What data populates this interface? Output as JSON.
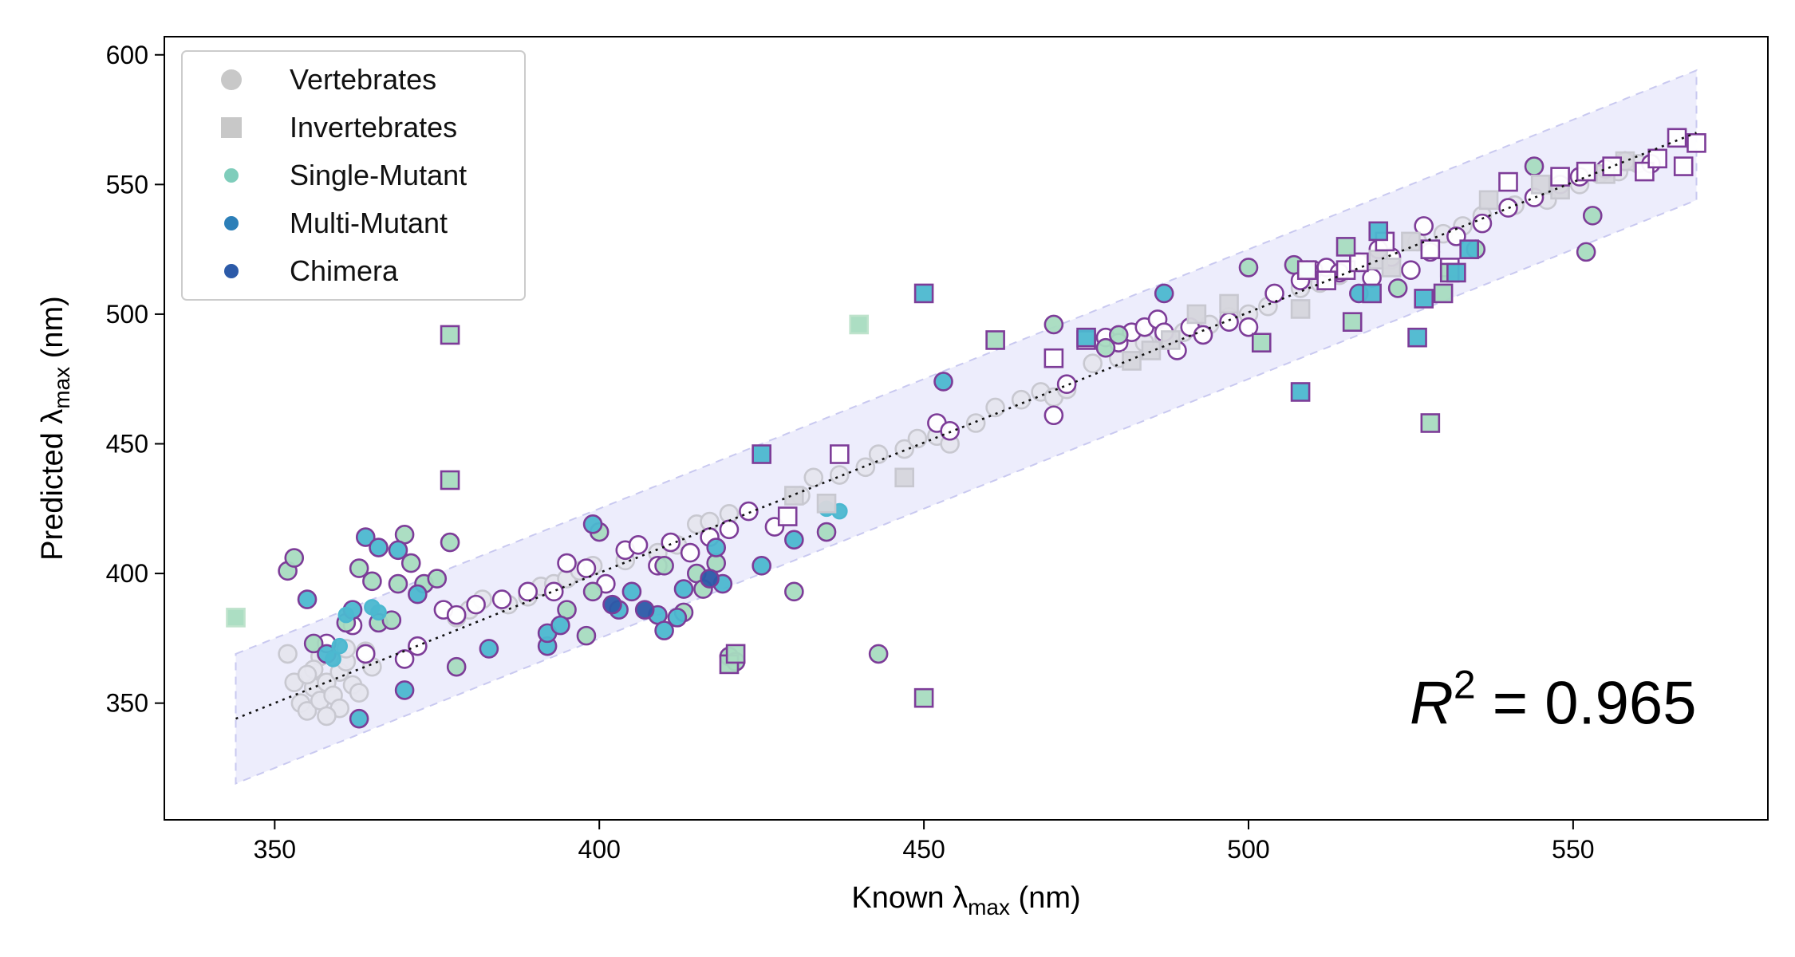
{
  "chart_data": {
    "type": "scatter",
    "xlabel_prefix": "Known λ",
    "xlabel_sub": "max",
    "xlabel_suffix": " (nm)",
    "ylabel_prefix": "Predicted λ",
    "ylabel_sub": "max",
    "ylabel_suffix": " (nm)",
    "xlim": [
      333,
      580
    ],
    "ylim": [
      305,
      607
    ],
    "xticks": [
      350,
      400,
      450,
      500,
      550
    ],
    "yticks": [
      350,
      400,
      450,
      500,
      550,
      600
    ],
    "grid": false,
    "annotation": {
      "r_label": "R",
      "r_exp": "2",
      "r_value": " = 0.965"
    },
    "fit_line": {
      "x": [
        344,
        569
      ],
      "y": [
        344,
        570
      ],
      "style": "dotted",
      "color": "#111111"
    },
    "band": {
      "x": [
        344,
        569
      ],
      "lower": [
        319,
        544
      ],
      "upper": [
        369,
        594
      ],
      "color": "#e9e9fb"
    },
    "colors": {
      "gray": "#c8c8c8",
      "gray_edge": "#c8c8d0",
      "purple": "#7d3c98",
      "single_mutant": "#7fcdbb",
      "mint": "#a8dcc0",
      "multi_mutant": "#2c7fb8",
      "cyan_fill": "#4cb8d0",
      "chimera": "#2c5aa8"
    },
    "legend": {
      "position": "top-left",
      "entries": [
        {
          "label": "Vertebrates",
          "marker": "circle",
          "color": "#c8c8c8"
        },
        {
          "label": "Invertebrates",
          "marker": "square",
          "color": "#c8c8c8"
        },
        {
          "label": "Single-Mutant",
          "marker": "small-circle",
          "color": "#7fcdbb"
        },
        {
          "label": "Multi-Mutant",
          "marker": "small-circle",
          "color": "#2c7fb8"
        },
        {
          "label": "Chimera",
          "marker": "small-circle",
          "color": "#2c5aa8"
        }
      ]
    },
    "series": [
      {
        "group": "vertebrates-wildtype",
        "marker": "circle",
        "fill": "#e6e6ee",
        "stroke": "#c8c8d0",
        "points": [
          [
            354,
            350
          ],
          [
            355,
            347
          ],
          [
            356,
            356
          ],
          [
            357,
            351
          ],
          [
            358,
            358
          ],
          [
            359,
            353
          ],
          [
            360,
            362
          ],
          [
            361,
            366
          ],
          [
            362,
            357
          ],
          [
            363,
            354
          ],
          [
            364,
            370
          ],
          [
            357,
            368
          ],
          [
            352,
            369
          ],
          [
            353,
            358
          ],
          [
            356,
            363
          ],
          [
            360,
            348
          ],
          [
            358,
            345
          ],
          [
            365,
            364
          ],
          [
            355,
            361
          ],
          [
            361,
            371
          ],
          [
            378,
            383
          ],
          [
            380,
            386
          ],
          [
            382,
            390
          ],
          [
            386,
            388
          ],
          [
            389,
            391
          ],
          [
            391,
            395
          ],
          [
            393,
            396
          ],
          [
            395,
            398
          ],
          [
            397,
            401
          ],
          [
            399,
            403
          ],
          [
            404,
            405
          ],
          [
            409,
            408
          ],
          [
            412,
            411
          ],
          [
            415,
            419
          ],
          [
            417,
            420
          ],
          [
            420,
            423
          ],
          [
            431,
            430
          ],
          [
            433,
            437
          ],
          [
            437,
            438
          ],
          [
            441,
            441
          ],
          [
            443,
            446
          ],
          [
            447,
            448
          ],
          [
            449,
            452
          ],
          [
            452,
            453
          ],
          [
            454,
            450
          ],
          [
            458,
            458
          ],
          [
            461,
            464
          ],
          [
            465,
            467
          ],
          [
            468,
            470
          ],
          [
            470,
            468
          ],
          [
            472,
            471
          ],
          [
            476,
            481
          ],
          [
            480,
            483
          ],
          [
            482,
            487
          ],
          [
            484,
            489
          ],
          [
            487,
            491
          ],
          [
            490,
            493
          ],
          [
            494,
            496
          ],
          [
            497,
            499
          ],
          [
            500,
            500
          ],
          [
            503,
            503
          ],
          [
            508,
            510
          ],
          [
            511,
            512
          ],
          [
            514,
            515
          ],
          [
            522,
            521
          ],
          [
            526,
            528
          ],
          [
            530,
            531
          ],
          [
            533,
            534
          ],
          [
            536,
            538
          ],
          [
            541,
            542
          ],
          [
            546,
            544
          ],
          [
            551,
            550
          ],
          [
            554,
            554
          ],
          [
            557,
            555
          ],
          [
            560,
            558
          ]
        ]
      },
      {
        "group": "vertebrates-hollow-purple",
        "marker": "circle",
        "fill": "#ffffff",
        "stroke": "#7d3c98",
        "points": [
          [
            358,
            373
          ],
          [
            362,
            380
          ],
          [
            364,
            369
          ],
          [
            370,
            367
          ],
          [
            372,
            372
          ],
          [
            376,
            386
          ],
          [
            378,
            384
          ],
          [
            381,
            388
          ],
          [
            385,
            390
          ],
          [
            389,
            393
          ],
          [
            393,
            393
          ],
          [
            395,
            404
          ],
          [
            398,
            402
          ],
          [
            401,
            396
          ],
          [
            404,
            409
          ],
          [
            406,
            411
          ],
          [
            409,
            403
          ],
          [
            411,
            412
          ],
          [
            414,
            408
          ],
          [
            417,
            414
          ],
          [
            420,
            417
          ],
          [
            423,
            424
          ],
          [
            427,
            418
          ],
          [
            452,
            458
          ],
          [
            454,
            455
          ],
          [
            470,
            461
          ],
          [
            472,
            473
          ],
          [
            478,
            491
          ],
          [
            482,
            493
          ],
          [
            484,
            495
          ],
          [
            486,
            498
          ],
          [
            489,
            486
          ],
          [
            491,
            495
          ],
          [
            493,
            492
          ],
          [
            497,
            497
          ],
          [
            500,
            495
          ],
          [
            504,
            508
          ],
          [
            508,
            513
          ],
          [
            510,
            517
          ],
          [
            512,
            518
          ],
          [
            514,
            516
          ],
          [
            517,
            520
          ],
          [
            519,
            514
          ],
          [
            522,
            522
          ],
          [
            525,
            517
          ],
          [
            528,
            524
          ],
          [
            532,
            530
          ],
          [
            536,
            535
          ],
          [
            540,
            541
          ],
          [
            544,
            545
          ],
          [
            548,
            550
          ],
          [
            551,
            553
          ],
          [
            555,
            556
          ],
          [
            558,
            559
          ],
          [
            562,
            558
          ],
          [
            480,
            489
          ],
          [
            487,
            493
          ],
          [
            520,
            525
          ],
          [
            527,
            534
          ]
        ]
      },
      {
        "group": "vertebrates-filled-mint",
        "marker": "circle",
        "fill": "#a8dcc0",
        "stroke": "#7d3c98",
        "points": [
          [
            352,
            401
          ],
          [
            353,
            406
          ],
          [
            356,
            373
          ],
          [
            361,
            381
          ],
          [
            363,
            402
          ],
          [
            365,
            397
          ],
          [
            366,
            381
          ],
          [
            368,
            382
          ],
          [
            369,
            396
          ],
          [
            370,
            415
          ],
          [
            371,
            404
          ],
          [
            373,
            396
          ],
          [
            375,
            398
          ],
          [
            377,
            412
          ],
          [
            378,
            364
          ],
          [
            395,
            386
          ],
          [
            398,
            376
          ],
          [
            399,
            393
          ],
          [
            400,
            416
          ],
          [
            410,
            403
          ],
          [
            413,
            385
          ],
          [
            415,
            400
          ],
          [
            416,
            394
          ],
          [
            418,
            404
          ],
          [
            420,
            368
          ],
          [
            421,
            366
          ],
          [
            430,
            393
          ],
          [
            435,
            416
          ],
          [
            443,
            369
          ],
          [
            470,
            496
          ],
          [
            478,
            487
          ],
          [
            480,
            492
          ],
          [
            500,
            518
          ],
          [
            507,
            519
          ],
          [
            523,
            510
          ],
          [
            535,
            525
          ],
          [
            544,
            557
          ],
          [
            552,
            524
          ],
          [
            553,
            538
          ]
        ]
      },
      {
        "group": "vertebrates-filled-cyan",
        "marker": "circle",
        "fill": "#4cb8d0",
        "stroke": "#7d3c98",
        "points": [
          [
            355,
            390
          ],
          [
            358,
            369
          ],
          [
            362,
            386
          ],
          [
            363,
            344
          ],
          [
            364,
            414
          ],
          [
            366,
            410
          ],
          [
            369,
            409
          ],
          [
            370,
            355
          ],
          [
            372,
            392
          ],
          [
            383,
            371
          ],
          [
            392,
            372
          ],
          [
            392,
            377
          ],
          [
            394,
            380
          ],
          [
            399,
            419
          ],
          [
            403,
            386
          ],
          [
            405,
            393
          ],
          [
            409,
            384
          ],
          [
            410,
            378
          ],
          [
            412,
            383
          ],
          [
            413,
            394
          ],
          [
            418,
            410
          ],
          [
            419,
            396
          ],
          [
            425,
            403
          ],
          [
            430,
            413
          ],
          [
            453,
            474
          ],
          [
            487,
            508
          ],
          [
            509,
            517
          ],
          [
            517,
            508
          ]
        ]
      },
      {
        "group": "vertebrates-chimera",
        "marker": "circle",
        "fill": "#2c5aa8",
        "stroke": "#7d3c98",
        "points": [
          [
            402,
            388
          ],
          [
            407,
            386
          ],
          [
            417,
            398
          ]
        ]
      },
      {
        "group": "vertebrates-small-cyan",
        "marker": "small-circle",
        "fill": "#4cb8d0",
        "stroke": "#4cb8d0",
        "points": [
          [
            360,
            372
          ],
          [
            361,
            384
          ],
          [
            365,
            387
          ],
          [
            366,
            385
          ],
          [
            359,
            367
          ],
          [
            435,
            425
          ],
          [
            437,
            424
          ]
        ]
      },
      {
        "group": "invertebrates-gray",
        "marker": "square",
        "fill": "#d6d6dc",
        "stroke": "#c8c8d0",
        "points": [
          [
            430,
            430
          ],
          [
            435,
            427
          ],
          [
            447,
            437
          ],
          [
            482,
            482
          ],
          [
            485,
            486
          ],
          [
            488,
            490
          ],
          [
            492,
            500
          ],
          [
            497,
            504
          ],
          [
            508,
            502
          ],
          [
            520,
            521
          ],
          [
            522,
            518
          ],
          [
            525,
            528
          ],
          [
            537,
            544
          ],
          [
            545,
            550
          ],
          [
            548,
            548
          ],
          [
            555,
            554
          ],
          [
            558,
            559
          ]
        ]
      },
      {
        "group": "invertebrates-hollow-purple",
        "marker": "square",
        "fill": "#ffffff",
        "stroke": "#7d3c98",
        "points": [
          [
            429,
            422
          ],
          [
            437,
            446
          ],
          [
            470,
            483
          ],
          [
            509,
            517
          ],
          [
            512,
            513
          ],
          [
            515,
            517
          ],
          [
            517,
            520
          ],
          [
            521,
            528
          ],
          [
            528,
            525
          ],
          [
            531,
            518
          ],
          [
            540,
            551
          ],
          [
            548,
            553
          ],
          [
            552,
            555
          ],
          [
            556,
            557
          ],
          [
            561,
            555
          ],
          [
            563,
            560
          ],
          [
            566,
            568
          ],
          [
            567,
            557
          ],
          [
            569,
            566
          ],
          [
            475,
            490
          ]
        ]
      },
      {
        "group": "invertebrates-mint",
        "marker": "square",
        "fill": "#a8dcc0",
        "stroke": "#7d3c98",
        "points": [
          [
            377,
            492
          ],
          [
            377,
            436
          ],
          [
            420,
            365
          ],
          [
            421,
            369
          ],
          [
            450,
            352
          ],
          [
            461,
            490
          ],
          [
            502,
            489
          ],
          [
            515,
            526
          ],
          [
            516,
            497
          ],
          [
            528,
            458
          ],
          [
            530,
            508
          ],
          [
            531,
            516
          ]
        ]
      },
      {
        "group": "invertebrates-cyan",
        "marker": "square",
        "fill": "#4cb8d0",
        "stroke": "#7d3c98",
        "points": [
          [
            425,
            446
          ],
          [
            450,
            508
          ],
          [
            475,
            491
          ],
          [
            508,
            470
          ],
          [
            519,
            508
          ],
          [
            520,
            532
          ],
          [
            526,
            491
          ],
          [
            527,
            506
          ],
          [
            532,
            516
          ],
          [
            534,
            525
          ]
        ]
      },
      {
        "group": "invertebrates-mint-plain",
        "marker": "square",
        "fill": "#a8dcc0",
        "stroke": "#bfe3cc",
        "points": [
          [
            344,
            383
          ],
          [
            440,
            496
          ]
        ]
      }
    ]
  }
}
